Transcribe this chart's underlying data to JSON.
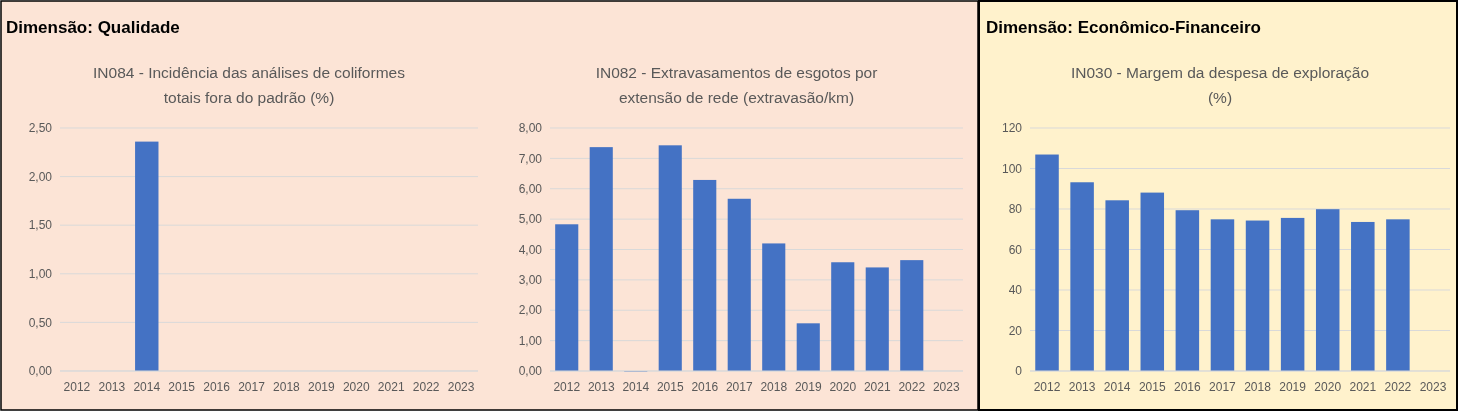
{
  "chart_data": [
    {
      "type": "bar",
      "title": "IN084 - Incidência das análises de coliformes\ntotais fora do padrão (%)",
      "annotations": [
        "Dimensão: Qualidade"
      ],
      "categories": [
        "2012",
        "2013",
        "2014",
        "2015",
        "2016",
        "2017",
        "2018",
        "2019",
        "2020",
        "2021",
        "2022",
        "2023"
      ],
      "values": [
        null,
        null,
        2.36,
        null,
        null,
        null,
        null,
        null,
        null,
        null,
        null,
        null
      ],
      "color": "#4472c4",
      "ylim": [
        0,
        2.5
      ],
      "yticks": [
        {
          "value": 0,
          "label": "0,00"
        },
        {
          "value": 0.5,
          "label": "0,50"
        },
        {
          "value": 1,
          "label": "1,00"
        },
        {
          "value": 1.5,
          "label": "1,50"
        },
        {
          "value": 2,
          "label": "2,00"
        },
        {
          "value": 2.5,
          "label": "2,50"
        }
      ],
      "grid": "y"
    },
    {
      "type": "bar",
      "title": "IN082 - Extravasamentos de esgotos por\nextensão de rede (extravasão/km)",
      "categories": [
        "2012",
        "2013",
        "2014",
        "2015",
        "2016",
        "2017",
        "2018",
        "2019",
        "2020",
        "2021",
        "2022",
        "2023"
      ],
      "values": [
        4.83,
        7.37,
        0,
        7.43,
        6.29,
        5.67,
        4.2,
        1.57,
        3.58,
        3.41,
        3.65,
        null
      ],
      "color": "#4472c4",
      "ylim": [
        0,
        8
      ],
      "yticks": [
        {
          "value": 0,
          "label": "0,00"
        },
        {
          "value": 1,
          "label": "1,00"
        },
        {
          "value": 2,
          "label": "2,00"
        },
        {
          "value": 3,
          "label": "3,00"
        },
        {
          "value": 4,
          "label": "4,00"
        },
        {
          "value": 5,
          "label": "5,00"
        },
        {
          "value": 6,
          "label": "6,00"
        },
        {
          "value": 7,
          "label": "7,00"
        },
        {
          "value": 8,
          "label": "8,00"
        }
      ],
      "grid": "y"
    },
    {
      "type": "bar",
      "title": "IN030 - Margem da despesa de exploração\n(%)",
      "annotations": [
        "Dimensão: Econômico-Financeiro"
      ],
      "categories": [
        "2012",
        "2013",
        "2014",
        "2015",
        "2016",
        "2017",
        "2018",
        "2019",
        "2020",
        "2021",
        "2022",
        "2023"
      ],
      "values": [
        106.9,
        93.2,
        84.3,
        88.1,
        79.4,
        74.9,
        74.3,
        75.6,
        79.9,
        73.6,
        74.9,
        null
      ],
      "color": "#4472c4",
      "ylim": [
        0,
        120
      ],
      "yticks": [
        0,
        20,
        40,
        60,
        80,
        100,
        120
      ],
      "grid": "y"
    }
  ]
}
